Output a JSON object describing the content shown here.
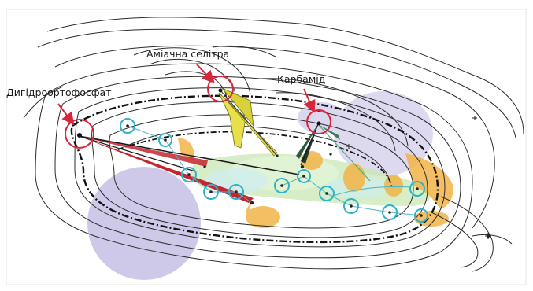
{
  "labels": {
    "phosphate": "Дигідроортофосфат",
    "nitrate": "Аміачна селітра",
    "urea": "Карбамід"
  },
  "colors": {
    "contour": "#2b2b2b",
    "callout": "#d9263a",
    "marker_ring": "#2fb3c8",
    "zone_lavender": "#b9b2de",
    "zone_orange": "#f2b447",
    "zone_green": "#c9e8b5",
    "zone_cyan": "#bfe7ef",
    "fan_yellow": "#e8e04a",
    "fan_red": "#c4262e",
    "fan_dark": "#1e3a2c"
  }
}
